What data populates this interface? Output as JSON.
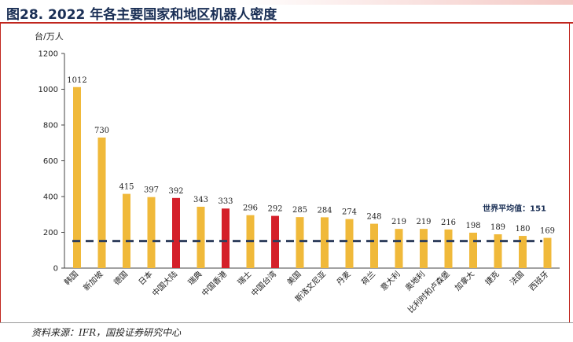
{
  "header": {
    "title": "图28. 2022 年各主要国家和地区机器人密度"
  },
  "footer": {
    "source": "资料来源：IFR，国投证券研究中心"
  },
  "colors": {
    "default_bar": "#f0b93a",
    "highlight_bar": "#d4202a",
    "average_line": "#2e3e5c",
    "title": "#1a2f55"
  },
  "chart_data": {
    "type": "bar",
    "title": "2022 年各主要国家和地区机器人密度",
    "unit_label": "台/万人",
    "xlabel": "",
    "ylabel": "台/万人",
    "ylim": [
      0,
      1200
    ],
    "yticks": [
      0,
      200,
      400,
      600,
      800,
      1000,
      1200
    ],
    "grid": false,
    "categories": [
      "韩国",
      "新加坡",
      "德国",
      "日本",
      "中国大陆",
      "瑞典",
      "中国香港",
      "瑞士",
      "中国台湾",
      "美国",
      "斯洛文尼亚",
      "丹麦",
      "荷兰",
      "意大利",
      "奥地利",
      "比利时和卢森堡",
      "加拿大",
      "捷克",
      "法国",
      "西班牙"
    ],
    "values": [
      1012,
      730,
      415,
      397,
      392,
      343,
      333,
      296,
      292,
      285,
      284,
      274,
      248,
      219,
      219,
      216,
      198,
      189,
      180,
      169
    ],
    "highlighted": [
      "中国大陆",
      "中国香港",
      "中国台湾"
    ],
    "average": {
      "label": "世界平均值：151",
      "value": 151
    }
  }
}
